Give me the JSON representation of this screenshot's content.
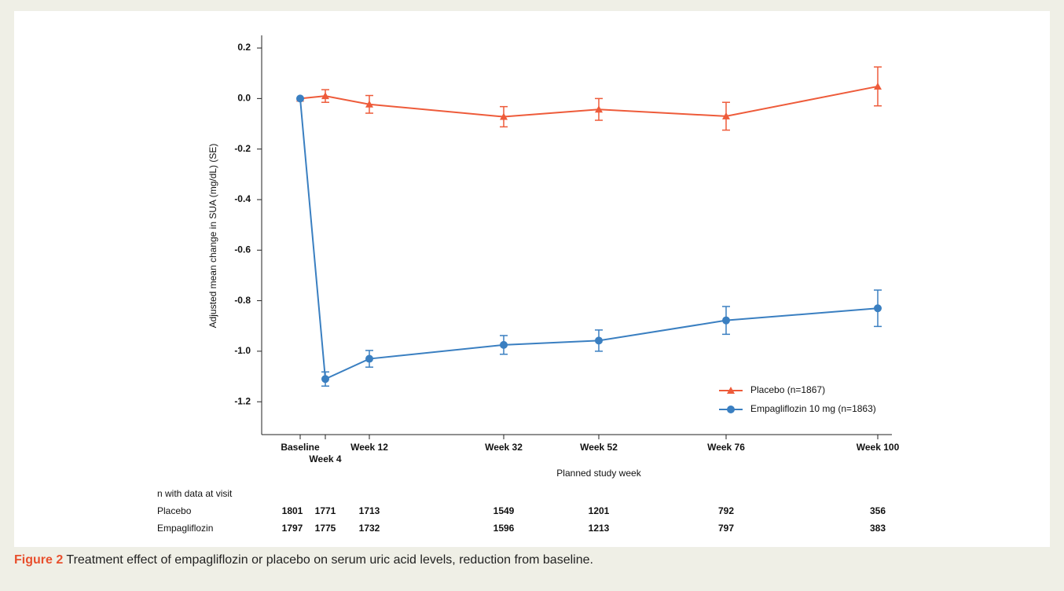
{
  "chart_data": {
    "type": "line",
    "y_label": "Adjusted mean change in SUA (mg/dL) (SE)",
    "x_label": "Planned study week",
    "categories": [
      "Baseline",
      "Week 4",
      "Week 12",
      "Week 32",
      "Week 52",
      "Week 76",
      "Week 100"
    ],
    "series": [
      {
        "name": "Placebo (n=1867)",
        "color": "#ee5b3a",
        "marker": "triangle",
        "values": [
          0,
          0.01,
          -0.023,
          -0.072,
          -0.043,
          -0.07,
          0.048
        ],
        "errors": [
          null,
          0.025,
          0.035,
          0.04,
          0.043,
          0.055,
          0.077
        ]
      },
      {
        "name": "Empagliflozin 10 mg (n=1863)",
        "color": "#3a7fc1",
        "marker": "circle",
        "values": [
          0,
          -1.11,
          -1.03,
          -0.975,
          -0.958,
          -0.878,
          -0.83
        ],
        "errors": [
          null,
          0.028,
          0.033,
          0.037,
          0.042,
          0.055,
          0.072
        ]
      }
    ],
    "ylim": [
      -1.33,
      0.25
    ],
    "yticks": [
      0.2,
      {
        "value": 0,
        "label": "0.0"
      },
      -0.2,
      -0.4,
      -0.6,
      -0.8,
      {
        "value": -1,
        "label": "-1.0"
      },
      -1.2
    ],
    "legend": "lower right",
    "table": {
      "title": "n with data at visit",
      "rows": [
        {
          "name": "Placebo",
          "color": "#ee5b3a",
          "values": [
            "1801",
            "1771",
            "1713",
            "1549",
            "1201",
            "792",
            "356"
          ]
        },
        {
          "name": "Empagliflozin",
          "color": "#3a7fc1",
          "values": [
            "1797",
            "1775",
            "1732",
            "1596",
            "1213",
            "797",
            "383"
          ]
        }
      ]
    }
  },
  "caption": {
    "label": "Figure 2",
    "text": "Treatment effect of empagliflozin or placebo on serum uric acid levels, reduction from baseline."
  }
}
